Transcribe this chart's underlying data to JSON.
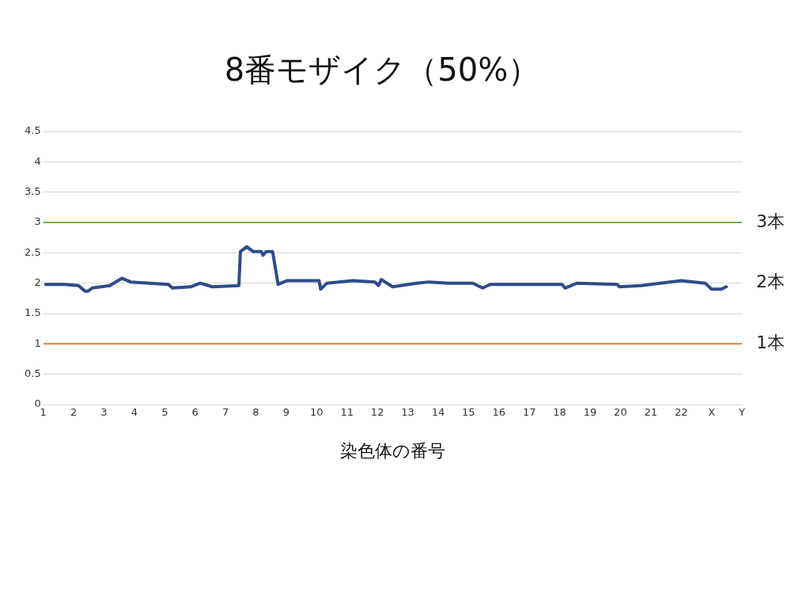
{
  "chart_data": {
    "type": "line",
    "title": "8番モザイク（50%）",
    "xlabel": "染色体の番号",
    "xlim": [
      1,
      24
    ],
    "xticks": [
      1,
      2,
      3,
      4,
      5,
      6,
      7,
      8,
      9,
      10,
      11,
      12,
      13,
      14,
      15,
      16,
      17,
      18,
      19,
      20,
      21,
      22,
      {
        "value": 23,
        "label": "X"
      },
      {
        "value": 24,
        "label": "Y"
      }
    ],
    "ylim": [
      0,
      4.5
    ],
    "yticks": [
      0,
      0.5,
      1,
      1.5,
      2,
      2.5,
      3,
      3.5,
      4,
      4.5
    ],
    "grid": "y",
    "legend": false,
    "marker": "none",
    "line_style": "solid",
    "series": [
      {
        "color": "#2f4b8a",
        "x": [
          1.08,
          1.69,
          2.16,
          2.37,
          2.48,
          2.61,
          3.19,
          3.59,
          3.88,
          5.12,
          5.25,
          5.85,
          6.17,
          6.57,
          7.44,
          7.49,
          7.7,
          7.91,
          8.18,
          8.23,
          8.34,
          8.55,
          8.73,
          9.02,
          10.08,
          10.13,
          10.34,
          11.18,
          11.92,
          12.03,
          12.13,
          12.5,
          13.3,
          13.69,
          14.35,
          15.14,
          15.46,
          15.72,
          18.07,
          18.18,
          18.57,
          19.89,
          19.97,
          20.68,
          22.0,
          22.79,
          23.0,
          23.32,
          23.48
        ],
        "values": [
          1.98,
          1.98,
          1.96,
          1.87,
          1.87,
          1.92,
          1.96,
          2.08,
          2.02,
          1.98,
          1.92,
          1.94,
          2.0,
          1.94,
          1.96,
          2.52,
          2.6,
          2.52,
          2.52,
          2.46,
          2.52,
          2.52,
          1.98,
          2.04,
          2.04,
          1.9,
          2.0,
          2.04,
          2.02,
          1.96,
          2.06,
          1.94,
          2.0,
          2.02,
          2.0,
          2.0,
          1.92,
          1.98,
          1.98,
          1.92,
          2.0,
          1.98,
          1.94,
          1.96,
          2.04,
          2.0,
          1.9,
          1.9,
          1.94
        ]
      }
    ],
    "ref_lines": [
      {
        "axis": "y",
        "value": 3,
        "label": "3本",
        "color": "#70ad47"
      },
      {
        "axis": "y",
        "value": 1,
        "label": "1本",
        "color": "#ed7d31"
      }
    ],
    "annotations": [
      "2本"
    ]
  }
}
